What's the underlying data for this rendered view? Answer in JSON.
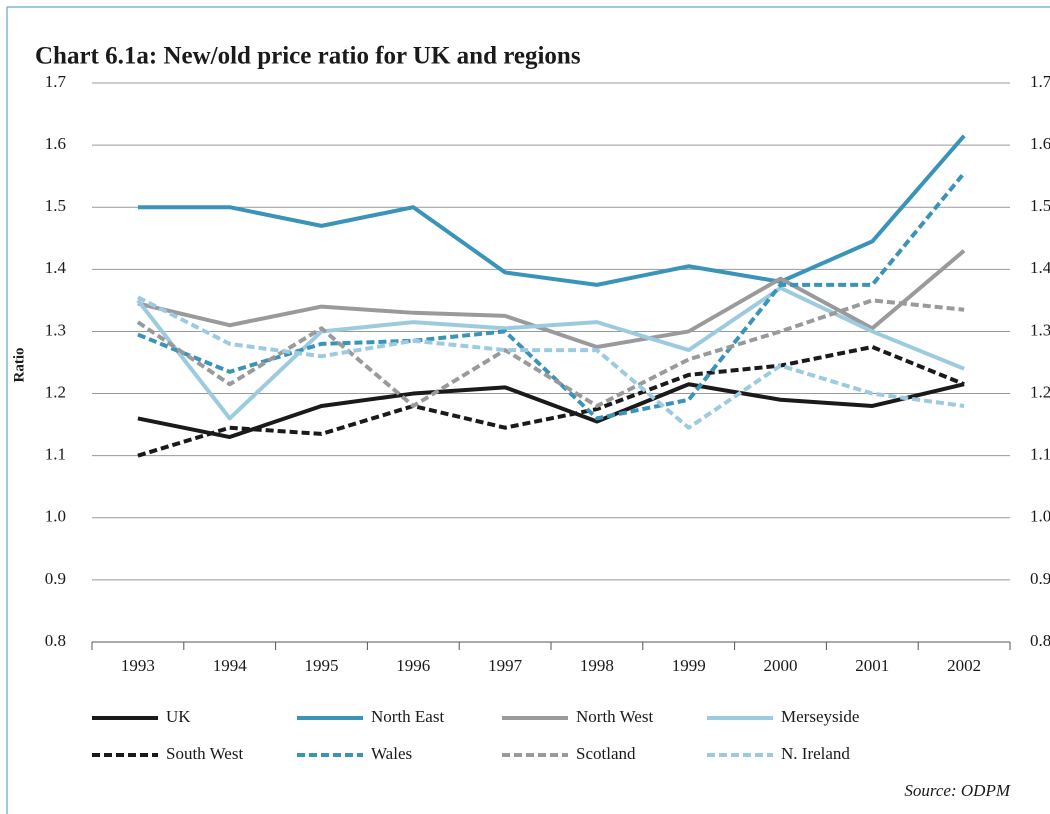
{
  "chart_data": {
    "type": "line",
    "title": "Chart 6.1a: New/old price ratio for UK and regions",
    "y_label": "Ratio",
    "source": "Source: ODPM",
    "categories": [
      "1993",
      "1994",
      "1995",
      "1996",
      "1997",
      "1998",
      "1999",
      "2000",
      "2001",
      "2002"
    ],
    "series": [
      {
        "name": "UK",
        "color": "#1a1a1a",
        "dashed": false,
        "values": [
          1.16,
          1.13,
          1.18,
          1.2,
          1.21,
          1.155,
          1.215,
          1.19,
          1.18,
          1.215
        ]
      },
      {
        "name": "North East",
        "color": "#3a93b8",
        "dashed": false,
        "values": [
          1.5,
          1.5,
          1.47,
          1.5,
          1.395,
          1.375,
          1.405,
          1.38,
          1.445,
          1.615
        ]
      },
      {
        "name": "North West",
        "color": "#9a9a9c",
        "dashed": false,
        "values": [
          1.345,
          1.31,
          1.34,
          1.33,
          1.325,
          1.275,
          1.3,
          1.385,
          1.305,
          1.43
        ]
      },
      {
        "name": "Merseyside",
        "color": "#9ccbe0",
        "dashed": false,
        "values": [
          1.35,
          1.16,
          1.3,
          1.315,
          1.305,
          1.315,
          1.27,
          1.37,
          1.3,
          1.24
        ]
      },
      {
        "name": "South West",
        "color": "#1a1a1a",
        "dashed": true,
        "values": [
          1.1,
          1.145,
          1.135,
          1.18,
          1.145,
          1.175,
          1.23,
          1.245,
          1.275,
          1.215
        ]
      },
      {
        "name": "Wales",
        "color": "#3a93b8",
        "dashed": true,
        "values": [
          1.295,
          1.235,
          1.28,
          1.285,
          1.3,
          1.16,
          1.19,
          1.375,
          1.375,
          1.555
        ]
      },
      {
        "name": "Scotland",
        "color": "#9a9a9c",
        "dashed": true,
        "values": [
          1.315,
          1.215,
          1.305,
          1.18,
          1.27,
          1.18,
          1.255,
          1.3,
          1.35,
          1.335
        ]
      },
      {
        "name": "N. Ireland",
        "color": "#9ccbe0",
        "dashed": true,
        "values": [
          1.355,
          1.28,
          1.26,
          1.285,
          1.27,
          1.27,
          1.145,
          1.245,
          1.2,
          1.18
        ]
      }
    ],
    "ylim": [
      0.8,
      1.7
    ],
    "yticks": [
      0.8,
      0.9,
      {
        "value": 1.0,
        "label": "1.0"
      },
      1.1,
      1.2,
      1.3,
      1.4,
      1.5,
      1.6,
      1.7
    ],
    "y2lim": [
      0.8,
      1.7
    ],
    "y2ticks": [
      0.8,
      0.9,
      {
        "value": 1.0,
        "label": "1.0"
      },
      1.1,
      1.2,
      1.3,
      1.4,
      1.5,
      1.6,
      1.7
    ],
    "grid": true
  }
}
